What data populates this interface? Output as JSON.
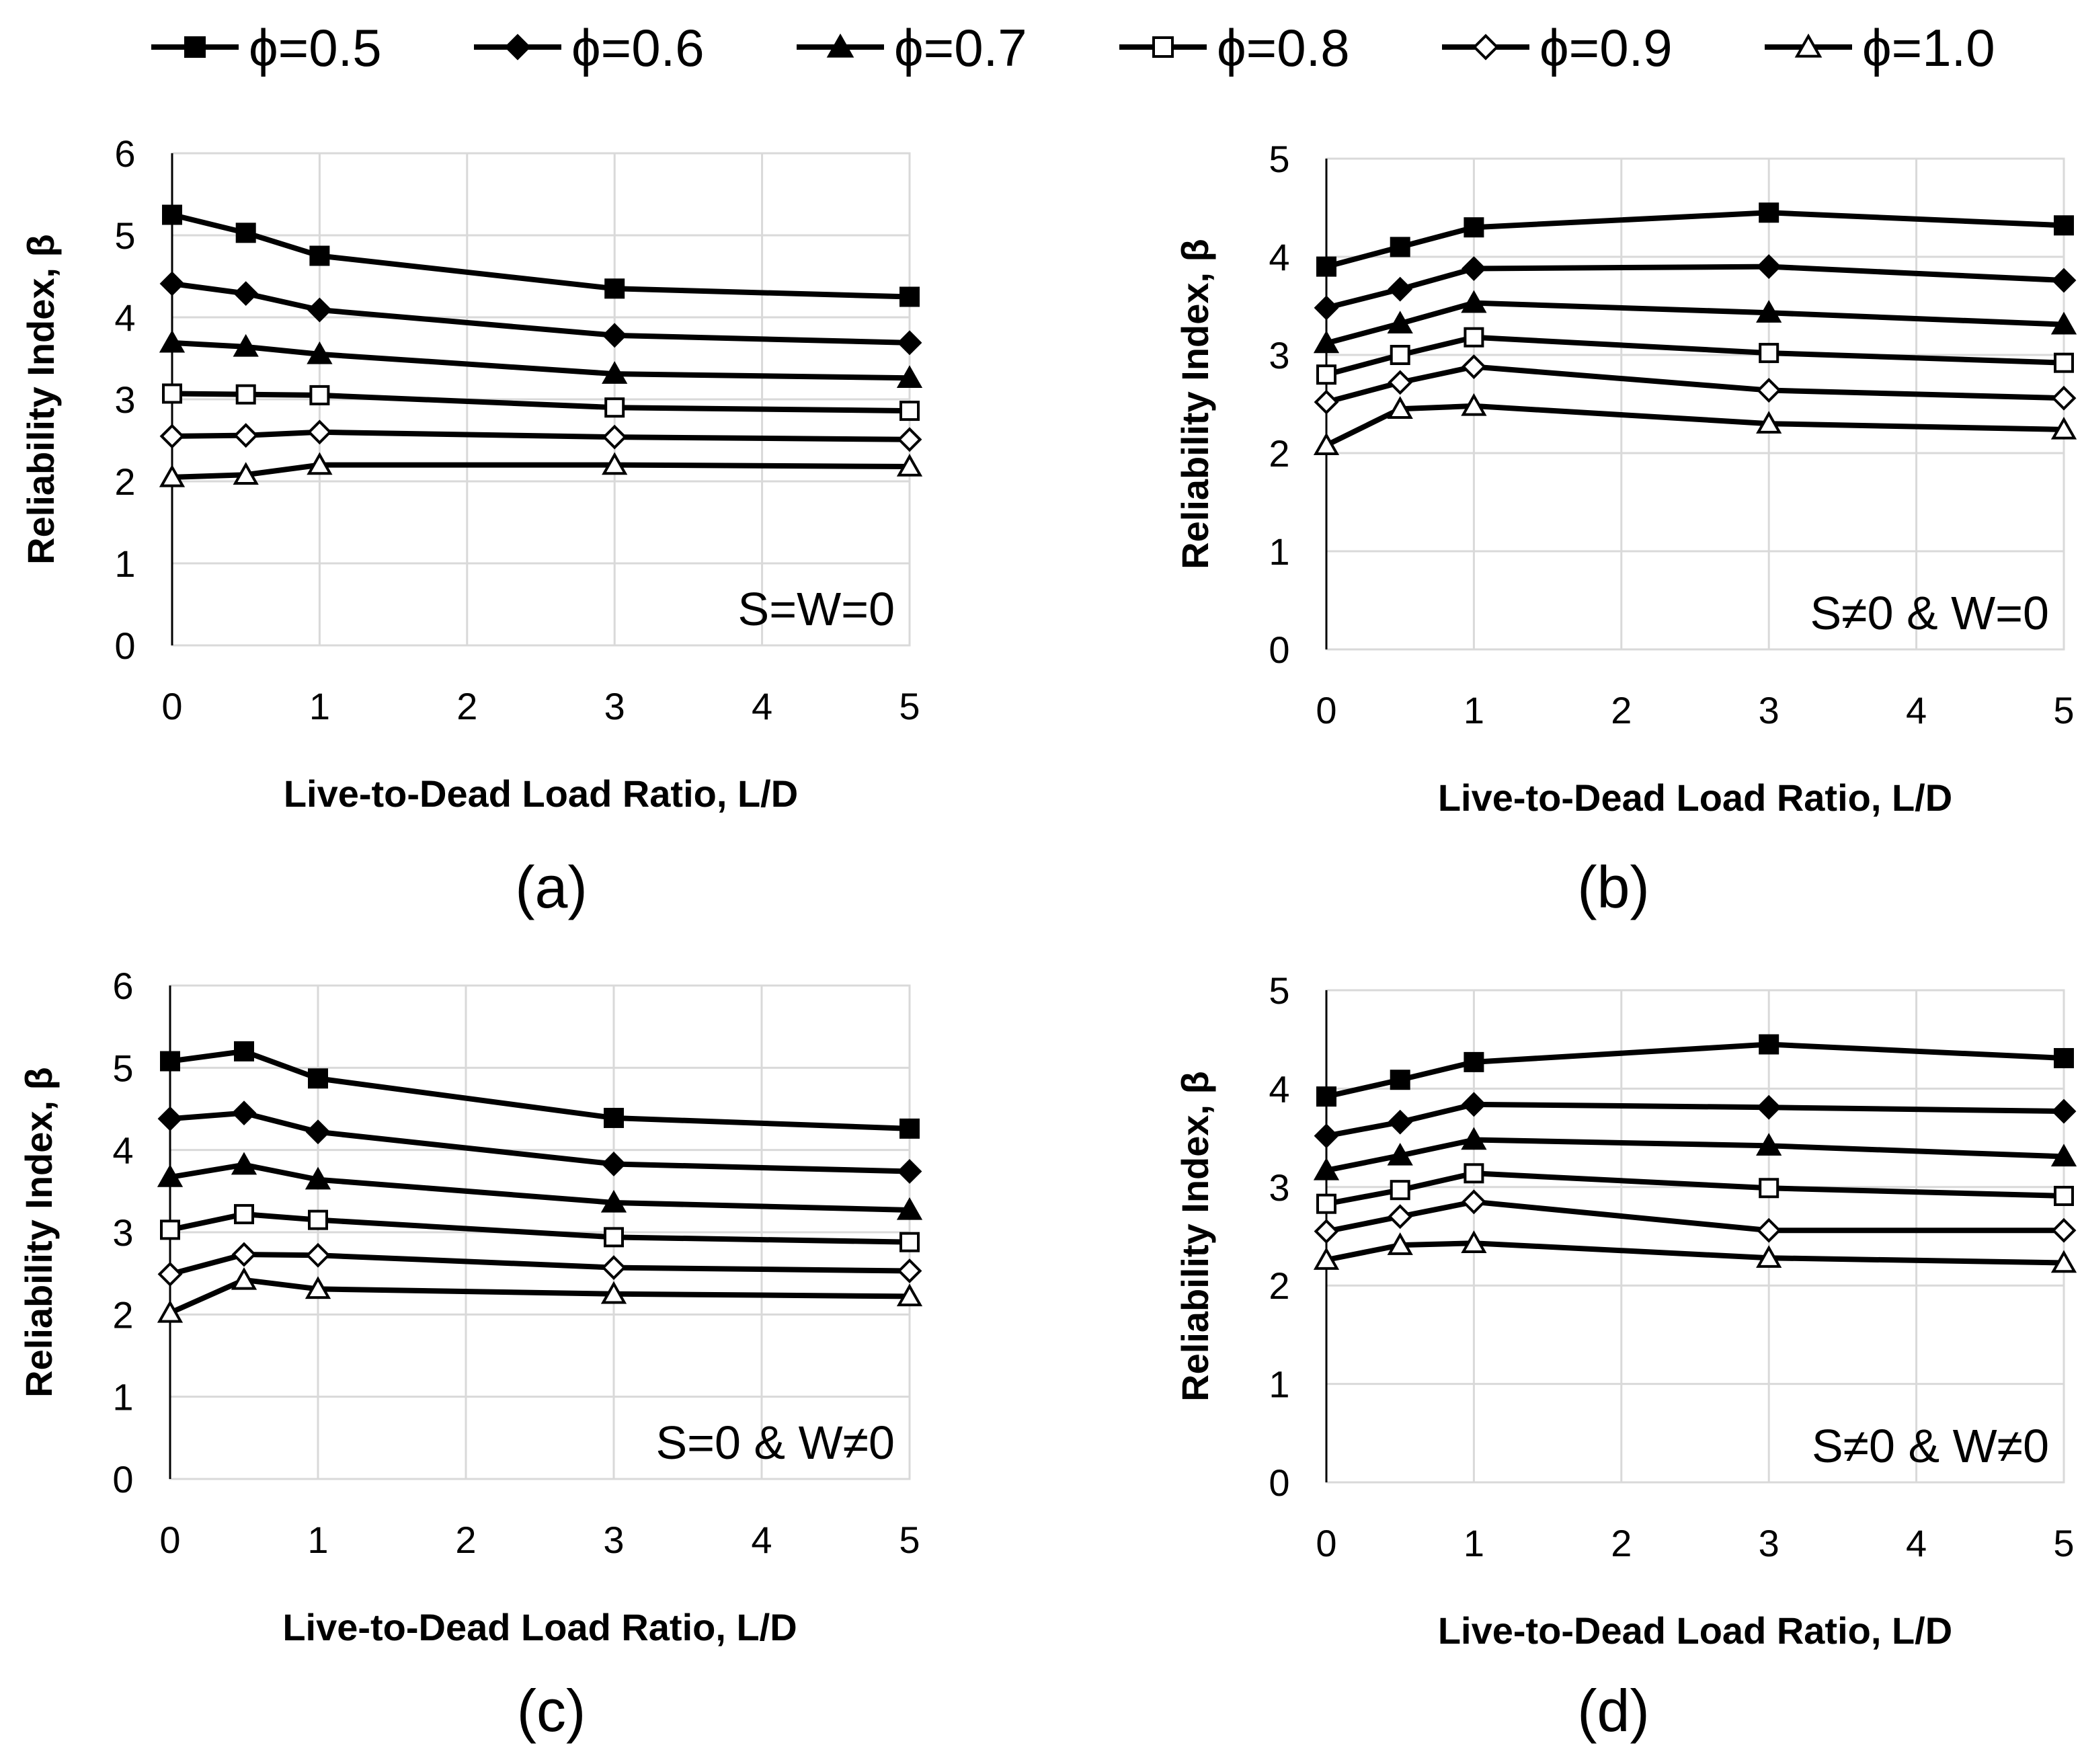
{
  "legend": [
    {
      "label": "ϕ=0.5",
      "marker": "square-filled"
    },
    {
      "label": "ϕ=0.6",
      "marker": "diamond-filled"
    },
    {
      "label": "ϕ=0.7",
      "marker": "triangle-filled"
    },
    {
      "label": "ϕ=0.8",
      "marker": "square-open"
    },
    {
      "label": "ϕ=0.9",
      "marker": "diamond-open"
    },
    {
      "label": "ϕ=1.0",
      "marker": "triangle-open"
    }
  ],
  "colors": {
    "line": "#000000",
    "grid": "#d9d9d9",
    "background": "#ffffff"
  },
  "chart_data": [
    {
      "type": "line",
      "caption": "(a)",
      "annotation": "S=W=0",
      "xlabel": "Live-to-Dead Load Ratio, L/D",
      "ylabel": "Reliability Index, β",
      "xlim": [
        0,
        5
      ],
      "ylim": [
        0,
        6
      ],
      "xticks": [
        0,
        1,
        2,
        3,
        4,
        5
      ],
      "yticks": [
        0,
        1,
        2,
        3,
        4,
        5,
        6
      ],
      "grid": true,
      "x": [
        0,
        0.5,
        1,
        3,
        5
      ],
      "series": [
        {
          "name": "ϕ=0.5",
          "values": [
            5.25,
            5.03,
            4.75,
            4.35,
            4.25
          ]
        },
        {
          "name": "ϕ=0.6",
          "values": [
            4.41,
            4.29,
            4.09,
            3.78,
            3.69
          ]
        },
        {
          "name": "ϕ=0.7",
          "values": [
            3.69,
            3.64,
            3.55,
            3.31,
            3.26
          ]
        },
        {
          "name": "ϕ=0.8",
          "values": [
            3.07,
            3.06,
            3.05,
            2.9,
            2.86
          ]
        },
        {
          "name": "ϕ=0.9",
          "values": [
            2.55,
            2.56,
            2.6,
            2.54,
            2.51
          ]
        },
        {
          "name": "ϕ=1.0",
          "values": [
            2.05,
            2.08,
            2.2,
            2.2,
            2.18
          ]
        }
      ]
    },
    {
      "type": "line",
      "caption": "(b)",
      "annotation": "S≠0 & W=0",
      "xlabel": "Live-to-Dead Load Ratio, L/D",
      "ylabel": "Reliability Index, β",
      "xlim": [
        0,
        5
      ],
      "ylim": [
        0,
        5
      ],
      "xticks": [
        0,
        1,
        2,
        3,
        4,
        5
      ],
      "yticks": [
        0,
        1,
        2,
        3,
        4,
        5
      ],
      "grid": true,
      "x": [
        0,
        0.5,
        1,
        3,
        5
      ],
      "series": [
        {
          "name": "ϕ=0.5",
          "values": [
            3.9,
            4.1,
            4.3,
            4.45,
            4.32
          ]
        },
        {
          "name": "ϕ=0.6",
          "values": [
            3.48,
            3.67,
            3.88,
            3.9,
            3.76
          ]
        },
        {
          "name": "ϕ=0.7",
          "values": [
            3.12,
            3.32,
            3.53,
            3.43,
            3.31
          ]
        },
        {
          "name": "ϕ=0.8",
          "values": [
            2.8,
            3.0,
            3.18,
            3.02,
            2.92
          ]
        },
        {
          "name": "ϕ=0.9",
          "values": [
            2.52,
            2.72,
            2.88,
            2.64,
            2.56
          ]
        },
        {
          "name": "ϕ=1.0",
          "values": [
            2.08,
            2.45,
            2.48,
            2.3,
            2.24
          ]
        }
      ]
    },
    {
      "type": "line",
      "caption": "(c)",
      "annotation": "S=0 & W≠0",
      "xlabel": "Live-to-Dead Load Ratio, L/D",
      "ylabel": "Reliability Index, β",
      "xlim": [
        0,
        5
      ],
      "ylim": [
        0,
        6
      ],
      "xticks": [
        0,
        1,
        2,
        3,
        4,
        5
      ],
      "yticks": [
        0,
        1,
        2,
        3,
        4,
        5,
        6
      ],
      "grid": true,
      "x": [
        0,
        0.5,
        1,
        3,
        5
      ],
      "series": [
        {
          "name": "ϕ=0.5",
          "values": [
            5.08,
            5.2,
            4.87,
            4.39,
            4.26
          ]
        },
        {
          "name": "ϕ=0.6",
          "values": [
            4.38,
            4.45,
            4.22,
            3.83,
            3.74
          ]
        },
        {
          "name": "ϕ=0.7",
          "values": [
            3.67,
            3.82,
            3.64,
            3.36,
            3.27
          ]
        },
        {
          "name": "ϕ=0.8",
          "values": [
            3.03,
            3.22,
            3.15,
            2.94,
            2.88
          ]
        },
        {
          "name": "ϕ=0.9",
          "values": [
            2.49,
            2.73,
            2.72,
            2.57,
            2.53
          ]
        },
        {
          "name": "ϕ=1.0",
          "values": [
            2.02,
            2.42,
            2.31,
            2.25,
            2.22
          ]
        }
      ]
    },
    {
      "type": "line",
      "caption": "(d)",
      "annotation": "S≠0 & W≠0",
      "xlabel": "Live-to-Dead Load Ratio, L/D",
      "ylabel": "Reliability Index, β",
      "xlim": [
        0,
        5
      ],
      "ylim": [
        0,
        5
      ],
      "xticks": [
        0,
        1,
        2,
        3,
        4,
        5
      ],
      "yticks": [
        0,
        1,
        2,
        3,
        4,
        5
      ],
      "grid": true,
      "x": [
        0,
        0.5,
        1,
        3,
        5
      ],
      "series": [
        {
          "name": "ϕ=0.5",
          "values": [
            3.92,
            4.09,
            4.27,
            4.45,
            4.31
          ]
        },
        {
          "name": "ϕ=0.6",
          "values": [
            3.52,
            3.66,
            3.84,
            3.81,
            3.77
          ]
        },
        {
          "name": "ϕ=0.7",
          "values": [
            3.17,
            3.32,
            3.48,
            3.42,
            3.31
          ]
        },
        {
          "name": "ϕ=0.8",
          "values": [
            2.83,
            2.97,
            3.14,
            2.99,
            2.91
          ]
        },
        {
          "name": "ϕ=0.9",
          "values": [
            2.55,
            2.7,
            2.85,
            2.56,
            2.56
          ]
        },
        {
          "name": "ϕ=1.0",
          "values": [
            2.26,
            2.41,
            2.43,
            2.28,
            2.23
          ]
        }
      ]
    }
  ]
}
